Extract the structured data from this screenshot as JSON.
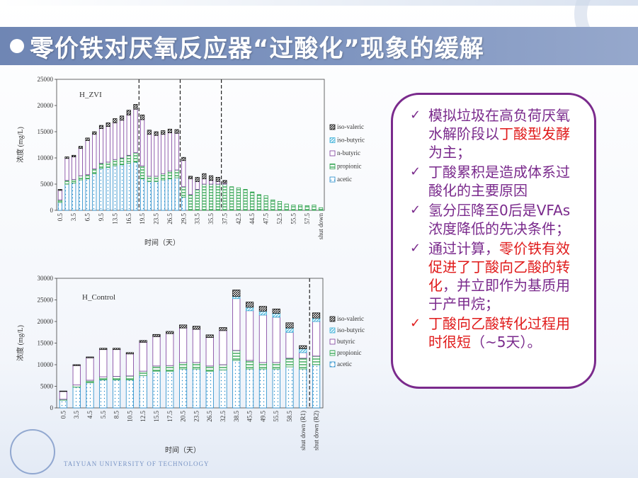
{
  "title": "零价铁对厌氧反应器“过酸化”现象的缓解",
  "colors": {
    "title_bar": "#7f95c0",
    "note_border": "#7a2a8c",
    "note_text": "#7a2a8c",
    "highlight": "#e01b1b",
    "acetic": "#1e88c8",
    "propionic": "#2aa04a",
    "butyric": "#7a3a9a",
    "iso_butyric": "#3ab0d8",
    "iso_valeric": "#111111"
  },
  "notes": [
    {
      "check": "✓",
      "check_color": "purple",
      "parts": [
        {
          "t": "模拟垃圾在高负荷厌氧水解阶段以"
        },
        {
          "t": "丁酸型发酵",
          "hl": true
        },
        {
          "t": "为主；"
        }
      ]
    },
    {
      "check": "✓",
      "check_color": "purple",
      "parts": [
        {
          "t": "丁酸累积是造成体系过酸化的主要原因"
        }
      ]
    },
    {
      "check": "✓",
      "check_color": "purple",
      "parts": [
        {
          "t": "氢分压降至0后是VFAs浓度降低的先决条件；"
        }
      ]
    },
    {
      "check": "✓",
      "check_color": "purple",
      "parts": [
        {
          "t": "通过计算，"
        },
        {
          "t": "零价铁有效促进了丁酸向乙酸的转化",
          "hl": true
        },
        {
          "t": "，并立即作为基质用于产甲烷；"
        }
      ]
    },
    {
      "check": "✓",
      "check_color": "red",
      "parts": [
        {
          "t": "丁酸向乙酸转化过程用时很短",
          "hl": true
        },
        {
          "t": "（~5天）。"
        }
      ]
    }
  ],
  "logo_text": "TAIYUAN UNIVERSITY OF TECHNOLOGY",
  "chart_data": [
    {
      "type": "bar",
      "stacked": true,
      "label": "H_ZVI",
      "xlabel": "时间（天）",
      "ylabel": "浓度 (mg/L)",
      "ylim": [
        0,
        25000
      ],
      "yticks": [
        0,
        5000,
        10000,
        15000,
        20000,
        25000
      ],
      "tick_labels": [
        "0.5",
        "3.5",
        "6.5",
        "9.5",
        "13.5",
        "16.5",
        "19.5",
        "23.5",
        "26.5",
        "29.5",
        "33.5",
        "35.5",
        "37.5",
        "42.5",
        "44.5",
        "47.5",
        "52.5",
        "55.5",
        "57.5",
        "shut down"
      ],
      "tick_every": 2,
      "legend": [
        "iso-valeric",
        "iso-butyric",
        "n-butyric",
        "propionic",
        "acetic"
      ],
      "legend_position": "right",
      "dividers_after_index": [
        11,
        17,
        23
      ],
      "series": [
        {
          "name": "acetic",
          "values": [
            1500,
            5000,
            5200,
            5800,
            6000,
            7000,
            8000,
            8200,
            8500,
            8700,
            9000,
            9200,
            6000,
            5500,
            5500,
            5800,
            6000,
            6200,
            2500,
            0,
            0,
            0,
            0,
            0,
            0,
            0,
            0,
            0,
            0,
            0,
            0,
            0,
            0,
            0,
            0,
            0,
            0,
            0,
            0
          ]
        },
        {
          "name": "propionic",
          "values": [
            500,
            700,
            700,
            800,
            800,
            900,
            1000,
            1000,
            1200,
            1300,
            1500,
            1800,
            2500,
            1000,
            1000,
            1200,
            1500,
            1500,
            2000,
            3000,
            4000,
            5000,
            5000,
            5000,
            5000,
            4500,
            4300,
            4000,
            3500,
            3000,
            2800,
            2000,
            1700,
            1200,
            1000,
            1000,
            900,
            1000,
            500
          ]
        },
        {
          "name": "n-butyric",
          "values": [
            1800,
            4200,
            4300,
            5200,
            6500,
            6600,
            6600,
            6800,
            7000,
            7200,
            7700,
            8300,
            8800,
            8000,
            7800,
            7500,
            7300,
            7000,
            5000,
            3000,
            1500,
            1000,
            700,
            500,
            200,
            0,
            0,
            0,
            0,
            0,
            0,
            0,
            0,
            0,
            0,
            0,
            0,
            0,
            0
          ]
        },
        {
          "name": "iso-butyric",
          "values": [
            0,
            0,
            0,
            0,
            0,
            0,
            0,
            0,
            0,
            0,
            0,
            0,
            0,
            0,
            0,
            0,
            0,
            0,
            0,
            0,
            0,
            0,
            0,
            0,
            0,
            0,
            0,
            0,
            0,
            0,
            0,
            0,
            0,
            0,
            0,
            0,
            0,
            0,
            0
          ]
        },
        {
          "name": "iso-valeric",
          "values": [
            200,
            300,
            300,
            400,
            500,
            500,
            600,
            700,
            800,
            800,
            900,
            900,
            900,
            800,
            700,
            700,
            700,
            700,
            600,
            500,
            800,
            1000,
            900,
            800,
            500,
            0,
            0,
            0,
            0,
            0,
            0,
            0,
            0,
            0,
            0,
            0,
            0,
            0,
            0
          ]
        }
      ]
    },
    {
      "type": "bar",
      "stacked": true,
      "label": "H_Control",
      "xlabel": "时间（天）",
      "ylabel": "浓度 (mg/L)",
      "ylim": [
        0,
        30000
      ],
      "yticks": [
        0,
        5000,
        10000,
        15000,
        20000,
        25000,
        30000
      ],
      "categories": [
        "0.5",
        "3.5",
        "4.5",
        "5.5",
        "8.5",
        "10.5",
        "12.5",
        "15.5",
        "17.5",
        "20.5",
        "23.5",
        "26.5",
        "32.5",
        "38.5",
        "45.5",
        "49.5",
        "55.5",
        "58.5",
        "shut down (R1)",
        "shut down (R2)"
      ],
      "legend": [
        "iso-valeric",
        "iso-butyric",
        "butyric",
        "propionic",
        "acetic"
      ],
      "legend_position": "right",
      "dividers_after_index": [
        18
      ],
      "series": [
        {
          "name": "acetic",
          "values": [
            1800,
            4800,
            5800,
            6500,
            6500,
            6500,
            7500,
            8500,
            8500,
            9000,
            9000,
            8500,
            8800,
            11000,
            9000,
            9000,
            9000,
            9500,
            9000,
            10000
          ]
        },
        {
          "name": "propionic",
          "values": [
            200,
            500,
            600,
            700,
            800,
            900,
            1000,
            1200,
            1300,
            1500,
            1500,
            1200,
            1200,
            2300,
            2000,
            1500,
            1500,
            2000,
            2500,
            2000
          ]
        },
        {
          "name": "butyric",
          "values": [
            1800,
            4500,
            5200,
            6300,
            6200,
            5100,
            6700,
            6800,
            7400,
            8000,
            7700,
            6600,
            7900,
            12000,
            11500,
            11000,
            10500,
            6000,
            1300,
            8000
          ]
        },
        {
          "name": "iso-butyric",
          "values": [
            0,
            0,
            0,
            0,
            0,
            0,
            0,
            0,
            0,
            0,
            0,
            0,
            0,
            500,
            800,
            900,
            900,
            1000,
            900,
            800
          ]
        },
        {
          "name": "iso-valeric",
          "values": [
            100,
            200,
            200,
            300,
            300,
            300,
            400,
            500,
            500,
            700,
            700,
            600,
            700,
            1500,
            1200,
            1100,
            1000,
            1200,
            700,
            1200
          ]
        }
      ]
    }
  ]
}
